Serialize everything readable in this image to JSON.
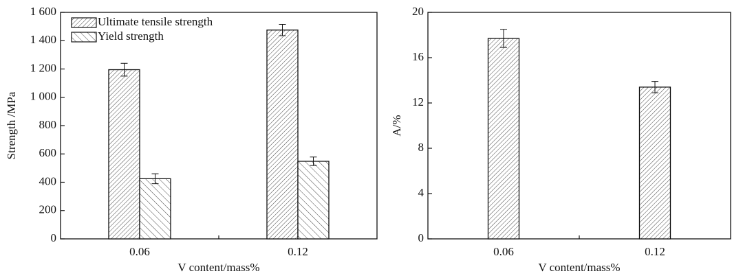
{
  "chart_data": [
    {
      "type": "bar",
      "x_label": "V content/mass%",
      "y_label": "Strength /MPa",
      "categories": [
        "0.06",
        "0.12"
      ],
      "series": [
        {
          "name": "Ultimate tensile strength",
          "color": "#333333",
          "hatch": "/",
          "values": [
            1195,
            1475
          ],
          "errors": [
            45,
            40
          ]
        },
        {
          "name": "Yield strength",
          "color": "#333333",
          "hatch": "\\",
          "values": [
            425,
            548
          ],
          "errors": [
            35,
            30
          ]
        }
      ],
      "ylim": [
        0,
        1600
      ],
      "yticks": [
        0,
        200,
        400,
        600,
        800,
        {
          "value": 1000,
          "label": "1 000"
        },
        {
          "value": 1200,
          "label": "1 200"
        },
        {
          "value": 1400,
          "label": "1 400"
        },
        {
          "value": 1600,
          "label": "1 600"
        }
      ],
      "legend": "upper left"
    },
    {
      "type": "bar",
      "x_label": "V content/mass%",
      "y_label": "A/%",
      "categories": [
        "0.06",
        "0.12"
      ],
      "series": [
        {
          "name": null,
          "color": "#333333",
          "hatch": "/",
          "values": [
            17.7,
            13.4
          ],
          "errors": [
            0.8,
            0.5
          ]
        }
      ],
      "ylim": [
        0,
        20
      ],
      "yticks": [
        0,
        4,
        8,
        12,
        16,
        20
      ]
    }
  ]
}
